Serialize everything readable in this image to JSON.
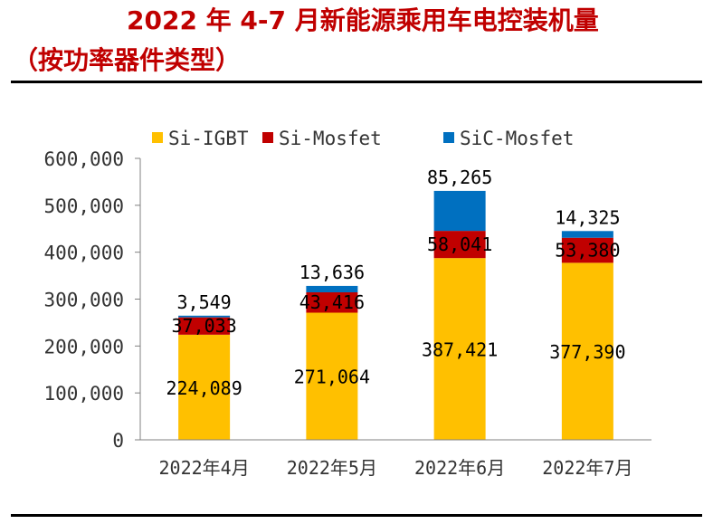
{
  "title_line1": "2022 年 4-7 月新能源乘用车电控装机量",
  "title_line2": "（按功率器件类型）",
  "colors": {
    "title": "#c00000",
    "si_igbt": "#ffc000",
    "si_mosfet": "#c00000",
    "sic_mosfet": "#0070c0"
  },
  "chart_data": {
    "type": "bar",
    "stacked": true,
    "title": "2022 年 4-7 月新能源乘用车电控装机量（按功率器件类型）",
    "xlabel": "",
    "ylabel": "",
    "ylim": [
      0,
      600000
    ],
    "yticks": [
      0,
      100000,
      200000,
      300000,
      400000,
      500000,
      600000
    ],
    "ytick_labels": [
      "0",
      "100,000",
      "200,000",
      "300,000",
      "400,000",
      "500,000",
      "600,000"
    ],
    "categories": [
      "2022年4月",
      "2022年5月",
      "2022年6月",
      "2022年7月"
    ],
    "legend_position": "top",
    "series": [
      {
        "name": "Si-IGBT",
        "color": "#ffc000",
        "values": [
          224089,
          271064,
          387421,
          377390
        ],
        "labels": [
          "224,089",
          "271,064",
          "387,421",
          "377,390"
        ]
      },
      {
        "name": "Si-Mosfet",
        "color": "#c00000",
        "values": [
          37033,
          43416,
          58041,
          53380
        ],
        "labels": [
          "37,033",
          "43,416",
          "58,041",
          "53,380"
        ]
      },
      {
        "name": "SiC-Mosfet",
        "color": "#0070c0",
        "values": [
          3549,
          13636,
          85265,
          14325
        ],
        "labels": [
          "3,549",
          "13,636",
          "85,265",
          "14,325"
        ]
      }
    ]
  }
}
